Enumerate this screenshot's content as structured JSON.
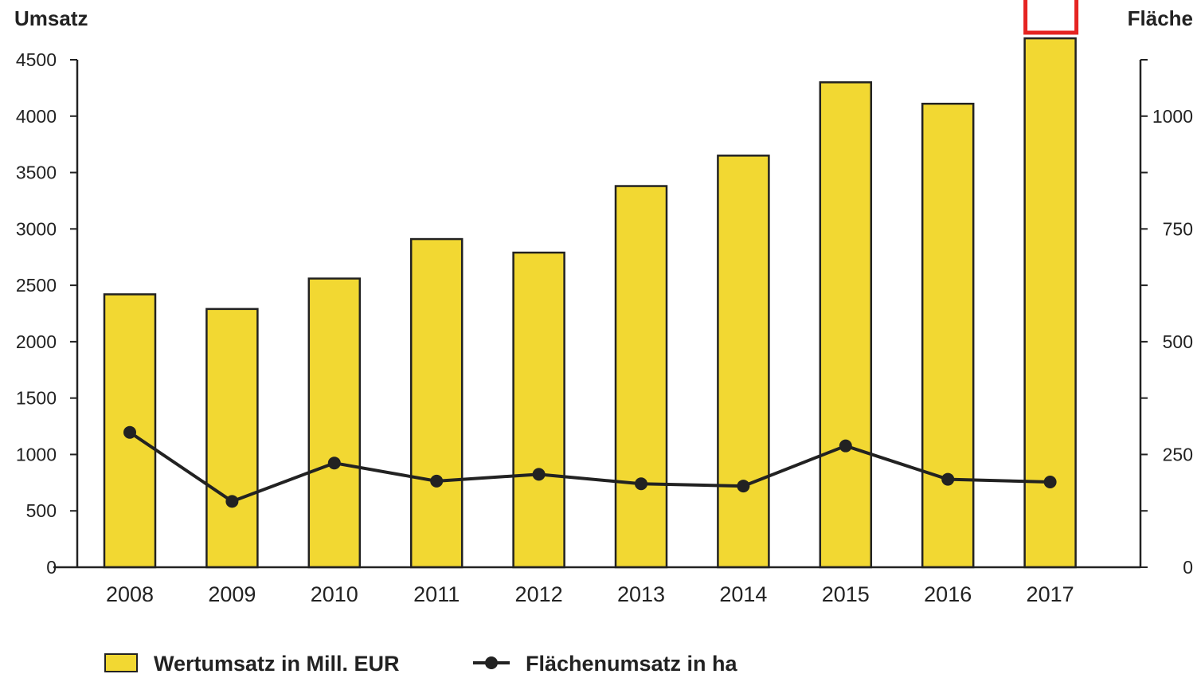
{
  "chart_data": {
    "type": "bar",
    "categories": [
      "2008",
      "2009",
      "2010",
      "2011",
      "2012",
      "2013",
      "2014",
      "2015",
      "2016",
      "2017"
    ],
    "series": [
      {
        "name": "Wertumsatz in Mill. EUR",
        "kind": "bar",
        "axis": "left",
        "values": [
          2420,
          2290,
          2560,
          2910,
          2790,
          3380,
          3650,
          4300,
          4110,
          4690
        ],
        "color": "#f2d832"
      },
      {
        "name": "Flächenumsatz in ha",
        "kind": "line",
        "axis": "right",
        "values": [
          299,
          146,
          231,
          191,
          206,
          185,
          180,
          269,
          195,
          189
        ],
        "color": "#222222"
      }
    ],
    "ylabel_left": "Umsatz",
    "ylabel_right": "Fläche",
    "ylim_left": [
      0,
      4500
    ],
    "yticks_left": [
      "0",
      "500",
      "1000",
      "1500",
      "2000",
      "2500",
      "3000",
      "3500",
      "4000",
      "4500"
    ],
    "ylim_right": [
      0,
      1125
    ],
    "yticks_right": [
      "0",
      "250",
      "500",
      "750",
      "1000"
    ],
    "grid": false,
    "legend_position": "bottom",
    "highlight": {
      "category": "2017",
      "color": "#e52421"
    }
  }
}
